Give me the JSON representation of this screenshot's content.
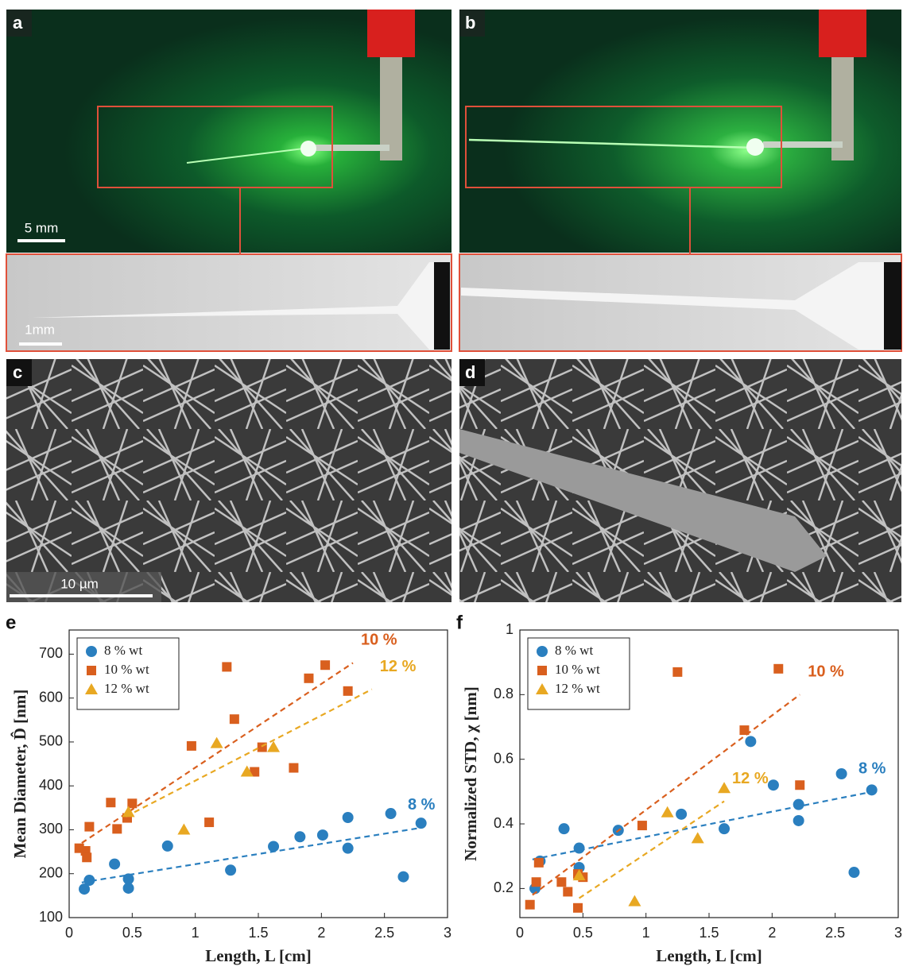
{
  "panels": {
    "a": {
      "label": "a",
      "scale_bar": "5 mm",
      "inset_scale_bar": "1mm"
    },
    "b": {
      "label": "b"
    },
    "c": {
      "label": "c",
      "scale_bar": "10 µm"
    },
    "d": {
      "label": "d"
    }
  },
  "chart_data": [
    {
      "type": "scatter",
      "panel_label": "e",
      "x_label": "Length, L [cm]",
      "y_label": "Mean Diameter, D̂ [nm]",
      "xlim": [
        0,
        3
      ],
      "xticks": [
        0,
        0.5,
        1,
        1.5,
        2,
        2.5,
        3
      ],
      "ylim": [
        100,
        755
      ],
      "yticks": [
        100,
        200,
        300,
        400,
        500,
        600,
        700
      ],
      "legend": "top-left",
      "series": [
        {
          "name": "8 % wt",
          "color": "#2a7fbf",
          "marker": "circle",
          "x": [
            0.12,
            0.16,
            0.36,
            0.47,
            0.47,
            0.78,
            1.28,
            1.62,
            1.83,
            2.01,
            2.21,
            2.21,
            2.55,
            2.65,
            2.79
          ],
          "values": [
            165,
            185,
            222,
            188,
            167,
            263,
            208,
            262,
            284,
            288,
            328,
            258,
            337,
            193,
            315
          ],
          "fit": {
            "x": [
              0.1,
              2.8
            ],
            "y": [
              180,
              305
            ]
          },
          "fit_label": "8 %"
        },
        {
          "name": "10 % wt",
          "color": "#d95f1e",
          "marker": "square",
          "x": [
            0.08,
            0.13,
            0.14,
            0.16,
            0.33,
            0.38,
            0.46,
            0.5,
            0.97,
            1.11,
            1.25,
            1.31,
            1.47,
            1.53,
            1.78,
            1.9,
            2.03,
            2.21
          ],
          "values": [
            258,
            252,
            237,
            307,
            362,
            302,
            327,
            360,
            491,
            317,
            671,
            552,
            432,
            488,
            441,
            645,
            675,
            616
          ],
          "fit": {
            "x": [
              0.1,
              2.25
            ],
            "y": [
              270,
              680
            ]
          },
          "fit_label": "10 %"
        },
        {
          "name": "12 % wt",
          "color": "#e8a822",
          "marker": "triangle",
          "x": [
            0.47,
            0.91,
            1.17,
            1.41,
            1.62
          ],
          "values": [
            340,
            300,
            497,
            432,
            488
          ],
          "fit": {
            "x": [
              0.45,
              2.4
            ],
            "y": [
              330,
              620
            ]
          },
          "fit_label": "12 %"
        }
      ]
    },
    {
      "type": "scatter",
      "panel_label": "f",
      "x_label": "Length, L [cm]",
      "y_label": "Normalized STD, χ [nm]",
      "xlim": [
        0,
        3
      ],
      "xticks": [
        0,
        0.5,
        1,
        1.5,
        2,
        2.5,
        3
      ],
      "ylim": [
        0.11,
        1
      ],
      "yticks": [
        0.2,
        0.4,
        0.6,
        0.8,
        1
      ],
      "legend": "top-left",
      "series": [
        {
          "name": "8 % wt",
          "color": "#2a7fbf",
          "marker": "circle",
          "x": [
            0.12,
            0.16,
            0.35,
            0.47,
            0.47,
            0.78,
            1.28,
            1.62,
            1.83,
            2.01,
            2.21,
            2.21,
            2.55,
            2.65,
            2.79
          ],
          "values": [
            0.2,
            0.285,
            0.385,
            0.325,
            0.265,
            0.38,
            0.43,
            0.385,
            0.655,
            0.52,
            0.46,
            0.41,
            0.555,
            0.25,
            0.505
          ],
          "fit": {
            "x": [
              0.1,
              2.8
            ],
            "y": [
              0.29,
              0.5
            ]
          },
          "fit_label": "8 %"
        },
        {
          "name": "10 % wt",
          "color": "#d95f1e",
          "marker": "square",
          "x": [
            0.08,
            0.13,
            0.15,
            0.33,
            0.38,
            0.46,
            0.46,
            0.5,
            0.97,
            1.25,
            1.78,
            2.05,
            2.22
          ],
          "values": [
            0.15,
            0.22,
            0.28,
            0.22,
            0.19,
            0.14,
            0.245,
            0.235,
            0.395,
            0.87,
            0.69,
            0.88,
            0.52
          ],
          "fit": {
            "x": [
              0.1,
              2.22
            ],
            "y": [
              0.18,
              0.8
            ]
          },
          "fit_label": "10 %"
        },
        {
          "name": "12 % wt",
          "color": "#e8a822",
          "marker": "triangle",
          "x": [
            0.47,
            0.91,
            1.17,
            1.41,
            1.62
          ],
          "values": [
            0.24,
            0.16,
            0.435,
            0.355,
            0.51
          ],
          "fit": {
            "x": [
              0.47,
              1.62
            ],
            "y": [
              0.17,
              0.47
            ]
          },
          "fit_label": "12 %"
        }
      ]
    }
  ]
}
